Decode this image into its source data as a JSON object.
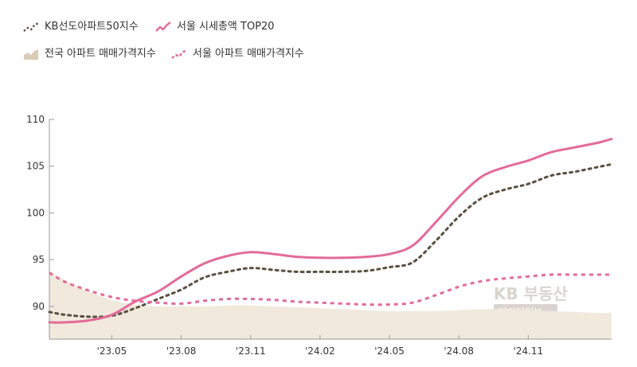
{
  "chart_data": {
    "type": "line",
    "title": "",
    "xlabel": "",
    "ylabel": "",
    "x_ticks": [
      "'23.05",
      "'23.08",
      "'23.11",
      "'24.02",
      "'24.05",
      "'24.08",
      "'24.11"
    ],
    "x_tick_positions": [
      2,
      5,
      8,
      11,
      14,
      17,
      20
    ],
    "x_range": [
      -0.7,
      23.6
    ],
    "y_ticks": [
      90,
      95,
      100,
      105,
      110
    ],
    "ylim": [
      86.5,
      110
    ],
    "grid": "none",
    "legend_position": "top-left",
    "series": [
      {
        "name": "KB선도아파트50지수",
        "style": "dotted",
        "kind": "line",
        "color": "#5a5040",
        "x": [
          -0.7,
          0,
          1,
          2,
          3,
          4,
          5,
          6,
          7,
          8,
          9,
          10,
          11,
          12,
          13,
          14,
          15,
          16,
          17,
          18,
          19,
          20,
          21,
          22,
          23,
          23.6
        ],
        "values": [
          89.4,
          89.1,
          88.9,
          89.0,
          89.8,
          90.8,
          91.8,
          93.1,
          93.7,
          94.1,
          93.9,
          93.7,
          93.7,
          93.7,
          93.8,
          94.2,
          94.7,
          97.0,
          99.6,
          101.6,
          102.5,
          103.1,
          104.0,
          104.4,
          104.9,
          105.2
        ]
      },
      {
        "name": "서울 시세총액 TOP20",
        "style": "solid",
        "kind": "line",
        "color": "#e36b9a",
        "x": [
          -0.7,
          0,
          1,
          2,
          3,
          4,
          5,
          6,
          7,
          8,
          9,
          10,
          11,
          12,
          13,
          14,
          15,
          16,
          17,
          18,
          19,
          20,
          21,
          22,
          23,
          23.6
        ],
        "values": [
          88.3,
          88.3,
          88.5,
          89.1,
          90.5,
          91.6,
          93.2,
          94.6,
          95.4,
          95.8,
          95.6,
          95.3,
          95.2,
          95.2,
          95.3,
          95.6,
          96.5,
          99.0,
          101.7,
          103.9,
          104.9,
          105.6,
          106.5,
          107.0,
          107.5,
          107.9
        ]
      },
      {
        "name": "전국 아파트 매매가격지수",
        "style": "area",
        "kind": "area",
        "color": "#f1e9dc",
        "x": [
          -0.7,
          0,
          1,
          2,
          3,
          4,
          5,
          6,
          7,
          8,
          9,
          10,
          11,
          12,
          13,
          14,
          15,
          16,
          17,
          18,
          19,
          20,
          21,
          22,
          23,
          23.6
        ],
        "values": [
          93.7,
          92.8,
          91.6,
          90.7,
          90.2,
          90.0,
          90.0,
          90.0,
          90.1,
          90.1,
          90.0,
          89.9,
          89.8,
          89.7,
          89.6,
          89.5,
          89.5,
          89.5,
          89.6,
          89.7,
          89.7,
          89.6,
          89.5,
          89.4,
          89.3,
          89.3
        ]
      },
      {
        "name": "서울 아파트 매매가격지수",
        "style": "dashed",
        "kind": "line",
        "color": "#e36b9a",
        "x": [
          -0.7,
          0,
          1,
          2,
          3,
          4,
          5,
          6,
          7,
          8,
          9,
          10,
          11,
          12,
          13,
          14,
          15,
          16,
          17,
          18,
          19,
          20,
          21,
          22,
          23,
          23.6
        ],
        "values": [
          93.6,
          92.6,
          91.7,
          91.0,
          90.6,
          90.4,
          90.3,
          90.6,
          90.8,
          90.8,
          90.7,
          90.5,
          90.4,
          90.3,
          90.2,
          90.2,
          90.4,
          91.2,
          92.1,
          92.7,
          93.0,
          93.2,
          93.4,
          93.4,
          93.4,
          93.4
        ]
      }
    ]
  },
  "legend": {
    "items": [
      {
        "label": "KB선도아파트50지수",
        "icon": "dotted-line-icon"
      },
      {
        "label": "서울 시세총액 TOP20",
        "icon": "solid-line-icon"
      },
      {
        "label": "전국 아파트 매매가격지수",
        "icon": "area-icon"
      },
      {
        "label": "서울 아파트 매매가격지수",
        "icon": "dashed-line-icon"
      }
    ]
  },
  "watermark": {
    "brand": "KB 부동산",
    "sub": "데이터허브"
  },
  "colors": {
    "axis": "#999999",
    "text": "#333333",
    "watermark": "#d9d4cf"
  }
}
